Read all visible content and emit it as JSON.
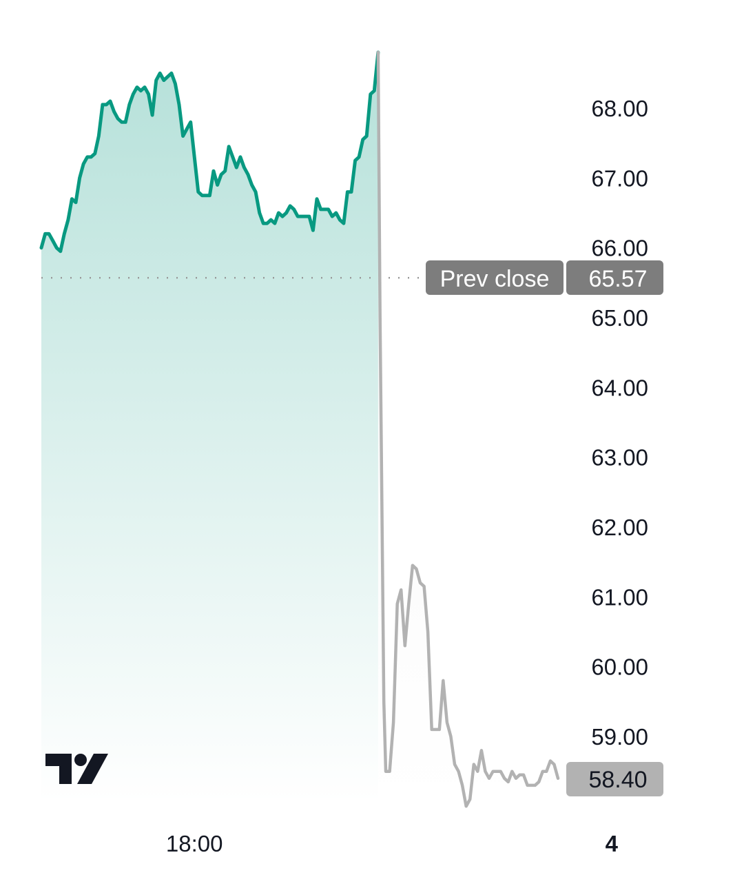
{
  "chart_data": {
    "type": "area",
    "y_axis": {
      "ticks": [
        "68.00",
        "67.00",
        "66.00",
        "65.00",
        "64.00",
        "63.00",
        "62.00",
        "61.00",
        "60.00",
        "59.00"
      ],
      "tick_values": [
        68,
        67,
        66,
        65,
        64,
        63,
        62,
        61,
        60,
        59
      ],
      "ylim": [
        57.1,
        68.8
      ]
    },
    "x_axis": {
      "ticks": [
        {
          "label": "18:00",
          "x": 40.0,
          "bold": false
        },
        {
          "label": "4",
          "x": 149.0,
          "bold": true
        }
      ],
      "xlim": [
        0,
        180
      ]
    },
    "series": [
      {
        "session": "regular",
        "color": "#089981",
        "fill": "gradient",
        "points": [
          [
            0,
            66.0
          ],
          [
            1,
            66.2
          ],
          [
            2,
            66.2
          ],
          [
            3,
            66.1
          ],
          [
            4,
            66.0
          ],
          [
            5,
            65.95
          ],
          [
            6,
            66.2
          ],
          [
            7,
            66.4
          ],
          [
            8,
            66.7
          ],
          [
            9,
            66.65
          ],
          [
            10,
            67.0
          ],
          [
            11,
            67.2
          ],
          [
            12,
            67.3
          ],
          [
            13,
            67.3
          ],
          [
            14,
            67.35
          ],
          [
            15,
            67.6
          ],
          [
            16,
            68.05
          ],
          [
            17,
            68.05
          ],
          [
            18,
            68.1
          ],
          [
            19,
            67.95
          ],
          [
            20,
            67.85
          ],
          [
            21,
            67.8
          ],
          [
            22,
            67.8
          ],
          [
            23,
            68.05
          ],
          [
            24,
            68.2
          ],
          [
            25,
            68.3
          ],
          [
            26,
            68.25
          ],
          [
            27,
            68.3
          ],
          [
            28,
            68.2
          ],
          [
            29,
            67.9
          ],
          [
            30,
            68.4
          ],
          [
            31,
            68.5
          ],
          [
            32,
            68.4
          ],
          [
            33,
            68.45
          ],
          [
            34,
            68.5
          ],
          [
            35,
            68.35
          ],
          [
            36,
            68.05
          ],
          [
            37,
            67.6
          ],
          [
            38,
            67.7
          ],
          [
            39,
            67.8
          ],
          [
            40,
            67.3
          ],
          [
            41,
            66.8
          ],
          [
            42,
            66.75
          ],
          [
            43,
            66.75
          ],
          [
            44,
            66.75
          ],
          [
            45,
            67.1
          ],
          [
            46,
            66.9
          ],
          [
            47,
            67.05
          ],
          [
            48,
            67.1
          ],
          [
            49,
            67.45
          ],
          [
            50,
            67.3
          ],
          [
            51,
            67.15
          ],
          [
            52,
            67.3
          ],
          [
            53,
            67.15
          ],
          [
            54,
            67.05
          ],
          [
            55,
            66.9
          ],
          [
            56,
            66.8
          ],
          [
            57,
            66.5
          ],
          [
            58,
            66.35
          ],
          [
            59,
            66.35
          ],
          [
            60,
            66.4
          ],
          [
            61,
            66.35
          ],
          [
            62,
            66.5
          ],
          [
            63,
            66.45
          ],
          [
            64,
            66.5
          ],
          [
            65,
            66.6
          ],
          [
            66,
            66.55
          ],
          [
            67,
            66.45
          ],
          [
            68,
            66.45
          ],
          [
            69,
            66.45
          ],
          [
            70,
            66.45
          ],
          [
            71,
            66.25
          ],
          [
            72,
            66.7
          ],
          [
            73,
            66.55
          ],
          [
            74,
            66.55
          ],
          [
            75,
            66.55
          ],
          [
            76,
            66.45
          ],
          [
            77,
            66.5
          ],
          [
            78,
            66.4
          ],
          [
            79,
            66.35
          ],
          [
            80,
            66.8
          ],
          [
            81,
            66.8
          ],
          [
            82,
            67.25
          ],
          [
            83,
            67.3
          ],
          [
            84,
            67.55
          ],
          [
            85,
            67.6
          ],
          [
            86,
            68.2
          ],
          [
            87,
            68.25
          ],
          [
            88,
            68.8
          ]
        ]
      },
      {
        "session": "post-market",
        "color": "#b2b2b2",
        "fill": "gradient",
        "points": [
          [
            88,
            68.8
          ],
          [
            88.5,
            65.0
          ],
          [
            89.5,
            59.5
          ],
          [
            90,
            58.5
          ],
          [
            91,
            58.5
          ],
          [
            92,
            59.2
          ],
          [
            93,
            60.9
          ],
          [
            94,
            61.1
          ],
          [
            95,
            60.3
          ],
          [
            96,
            60.9
          ],
          [
            97,
            61.45
          ],
          [
            98,
            61.4
          ],
          [
            99,
            61.2
          ],
          [
            100,
            61.15
          ],
          [
            101,
            60.5
          ],
          [
            102,
            59.1
          ],
          [
            103,
            59.1
          ],
          [
            104,
            59.1
          ],
          [
            105,
            59.8
          ],
          [
            106,
            59.2
          ],
          [
            107,
            59.0
          ],
          [
            108,
            58.6
          ],
          [
            109,
            58.5
          ],
          [
            110,
            58.3
          ],
          [
            111,
            58.0
          ],
          [
            112,
            58.1
          ],
          [
            113,
            58.6
          ],
          [
            114,
            58.5
          ],
          [
            115,
            58.8
          ],
          [
            116,
            58.5
          ],
          [
            117,
            58.4
          ],
          [
            118,
            58.5
          ],
          [
            119,
            58.5
          ],
          [
            120,
            58.5
          ],
          [
            121,
            58.4
          ],
          [
            122,
            58.35
          ],
          [
            123,
            58.5
          ],
          [
            124,
            58.4
          ],
          [
            125,
            58.45
          ],
          [
            126,
            58.45
          ],
          [
            127,
            58.3
          ],
          [
            128,
            58.3
          ],
          [
            129,
            58.3
          ],
          [
            130,
            58.35
          ],
          [
            131,
            58.5
          ],
          [
            132,
            58.5
          ],
          [
            133,
            58.65
          ],
          [
            134,
            58.6
          ],
          [
            135,
            58.4
          ]
        ]
      }
    ],
    "prev_close": {
      "label": "Prev close",
      "value": "65.57",
      "numeric": 65.57
    },
    "last_price": {
      "value": "58.40",
      "numeric": 58.4
    },
    "colors": {
      "regular_line": "#089981",
      "post_line": "#b2b2b2",
      "badge_bg": "#7d7d7d",
      "last_badge_bg": "#b2b2b2",
      "axis_text": "#131722",
      "logo": "#131722"
    },
    "logo": "tradingview-logo"
  }
}
